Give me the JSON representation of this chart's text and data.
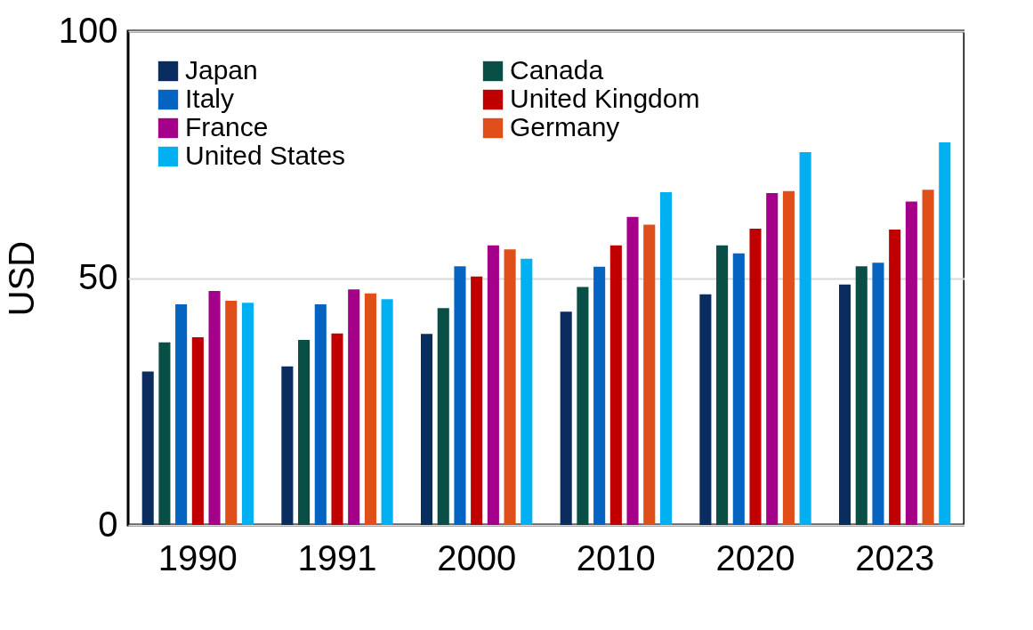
{
  "chart_data": {
    "type": "bar",
    "ylabel": "USD",
    "categories": [
      "1990",
      "1991",
      "2000",
      "2010",
      "2020",
      "2023"
    ],
    "series": [
      {
        "name": "Japan",
        "color": "#0b2c5e",
        "values": [
          31.1,
          32.1,
          38.7,
          43.2,
          46.7,
          48.7
        ]
      },
      {
        "name": "Canada",
        "color": "#0a4f45",
        "values": [
          37.0,
          37.5,
          43.9,
          48.2,
          56.6,
          52.4
        ]
      },
      {
        "name": "Italy",
        "color": "#0563c1",
        "values": [
          44.7,
          44.7,
          52.4,
          52.3,
          55.0,
          53.1
        ]
      },
      {
        "name": "United Kingdom",
        "color": "#c00000",
        "values": [
          38.0,
          38.8,
          50.3,
          56.6,
          60.0,
          59.8
        ]
      },
      {
        "name": "France",
        "color": "#a5008a",
        "values": [
          47.4,
          47.7,
          56.6,
          62.4,
          67.2,
          65.5
        ]
      },
      {
        "name": "Germany",
        "color": "#e04e1a",
        "values": [
          45.4,
          46.9,
          55.8,
          60.8,
          67.6,
          67.9
        ]
      },
      {
        "name": "United States",
        "color": "#00b0f0",
        "values": [
          45.0,
          45.7,
          53.9,
          67.4,
          75.5,
          77.5
        ]
      }
    ],
    "ylim": [
      0,
      100
    ],
    "yticks": [
      0,
      50,
      100
    ],
    "grid": "y",
    "legend": "top left"
  }
}
